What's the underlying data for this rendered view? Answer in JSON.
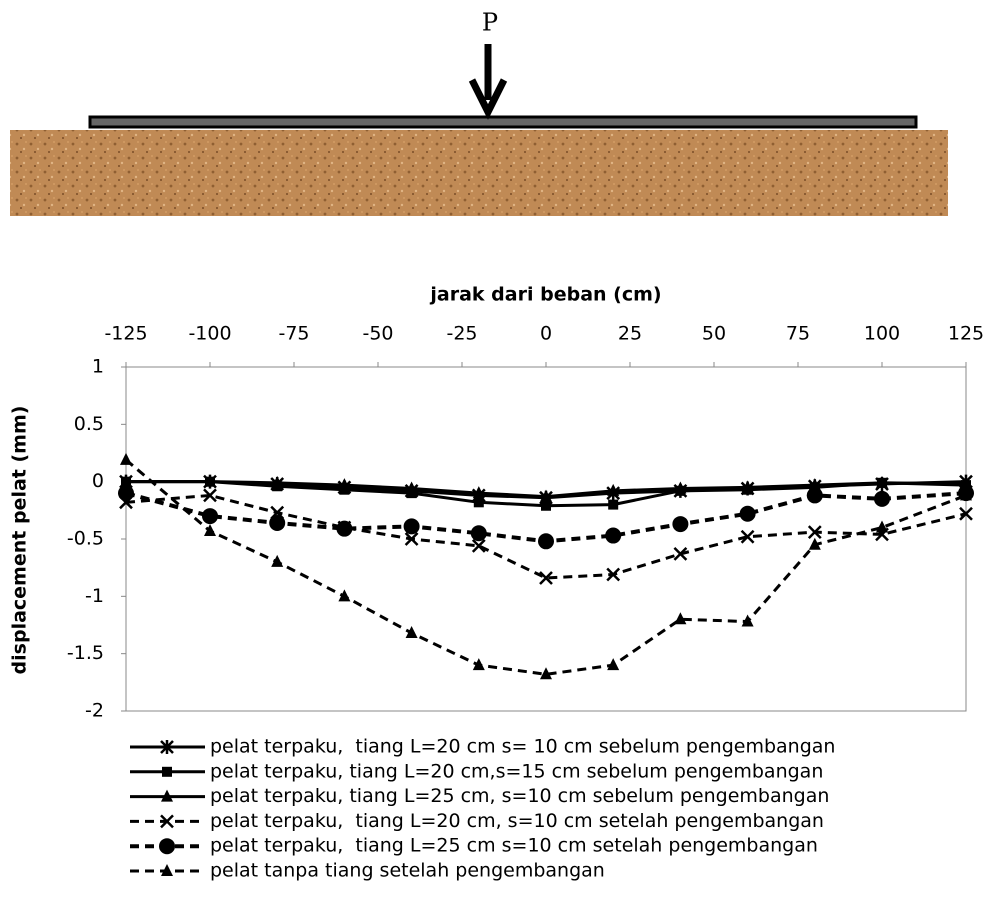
{
  "diagram": {
    "load_label": "P"
  },
  "chart_data": {
    "type": "line",
    "x_label": "jarak dari beban (cm)",
    "y_label": "displacement pelat  (mm)",
    "x": [
      -125,
      -100,
      -80,
      -60,
      -40,
      -20,
      0,
      20,
      40,
      60,
      80,
      100,
      125
    ],
    "xlim": [
      -125,
      125
    ],
    "xticks": [
      -125,
      -100,
      -75,
      -50,
      -25,
      0,
      25,
      50,
      75,
      100,
      125
    ],
    "ylim": [
      -2,
      1
    ],
    "yticks": [
      1,
      0.5,
      0,
      -0.5,
      -1,
      -1.5,
      -2
    ],
    "series": [
      {
        "name": "pelat terpaku,  tiang L=20 cm s= 10 cm sebelum pengembangan",
        "color": "#000000",
        "marker": "star",
        "dashed": false,
        "values": [
          0,
          0,
          -0.02,
          -0.05,
          -0.08,
          -0.12,
          -0.14,
          -0.1,
          -0.08,
          -0.06,
          -0.04,
          -0.02,
          0
        ]
      },
      {
        "name": "pelat terpaku, tiang L=20 cm,s=15 cm sebelum pengembangan",
        "color": "#000000",
        "marker": "square",
        "dashed": false,
        "values": [
          0,
          0,
          -0.04,
          -0.07,
          -0.1,
          -0.18,
          -0.21,
          -0.2,
          -0.08,
          -0.07,
          -0.05,
          -0.01,
          -0.03
        ]
      },
      {
        "name": "pelat terpaku, tiang L=25 cm, s=10 cm sebelum pengembangan",
        "color": "#000000",
        "marker": "triangle",
        "dashed": false,
        "values": [
          0,
          0,
          -0.01,
          -0.03,
          -0.06,
          -0.1,
          -0.13,
          -0.08,
          -0.06,
          -0.05,
          -0.03,
          -0.01,
          -0.02
        ]
      },
      {
        "name": "pelat terpaku,  tiang L=20 cm, s=10 cm setelah pengembangan",
        "color": "#000000",
        "marker": "x",
        "dashed": true,
        "values": [
          -0.18,
          -0.12,
          -0.27,
          -0.4,
          -0.5,
          -0.56,
          -0.84,
          -0.81,
          -0.63,
          -0.48,
          -0.44,
          -0.46,
          -0.28
        ]
      },
      {
        "name": "pelat terpaku,  tiang L=25 cm s=10 cm setelah pengembangan",
        "color": "#000000",
        "marker": "circle",
        "dashed": true,
        "values": [
          -0.1,
          -0.3,
          -0.36,
          -0.41,
          -0.39,
          -0.45,
          -0.52,
          -0.47,
          -0.37,
          -0.28,
          -0.12,
          -0.15,
          -0.1
        ]
      },
      {
        "name": "pelat tanpa tiang setelah pengembangan",
        "color": "#000000",
        "marker": "triangle",
        "dashed": true,
        "values": [
          0.19,
          -0.43,
          -0.7,
          -1.0,
          -1.32,
          -1.6,
          -1.68,
          -1.6,
          -1.2,
          -1.22,
          -0.55,
          -0.4,
          -0.12
        ]
      }
    ]
  }
}
